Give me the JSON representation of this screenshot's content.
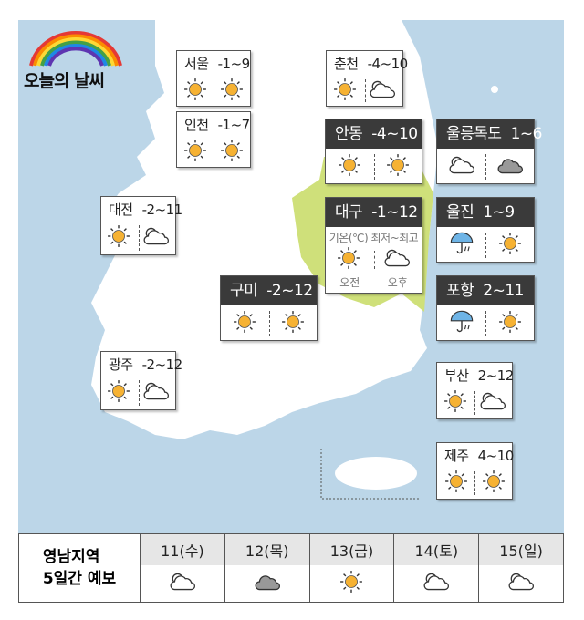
{
  "header": {
    "title": "오늘의 날씨"
  },
  "colors": {
    "sea": "#bcd6e8",
    "land": "#ffffff",
    "highlight_region": "#cfe07a",
    "card_header": "#3a3a3a",
    "sun": "#f6b233",
    "rain": "#6eb4e6"
  },
  "cities": [
    {
      "name": "서울",
      "temp": "-1~9",
      "am": "sun",
      "pm": "sun",
      "style": "plain"
    },
    {
      "name": "인천",
      "temp": "-1~7",
      "am": "sun",
      "pm": "sun",
      "style": "plain"
    },
    {
      "name": "춘천",
      "temp": "-4~10",
      "am": "sun",
      "pm": "cloud",
      "style": "plain"
    },
    {
      "name": "대전",
      "temp": "-2~11",
      "am": "sun",
      "pm": "cloud",
      "style": "plain"
    },
    {
      "name": "광주",
      "temp": "-2~12",
      "am": "sun",
      "pm": "cloud",
      "style": "plain"
    },
    {
      "name": "부산",
      "temp": "2~12",
      "am": "sun",
      "pm": "cloud",
      "style": "plain"
    },
    {
      "name": "제주",
      "temp": "4~10",
      "am": "sun",
      "pm": "sun",
      "style": "plain"
    },
    {
      "name": "안동",
      "temp": "-4~10",
      "am": "sun",
      "pm": "sun",
      "style": "dark"
    },
    {
      "name": "울릉독도",
      "temp": "1~6",
      "am": "cloud",
      "pm": "cloud-gray",
      "style": "dark"
    },
    {
      "name": "대구",
      "temp": "-1~12",
      "am": "sun",
      "pm": "cloud",
      "style": "dark",
      "legend": "기온(℃) 최저~최고",
      "am_label": "오전",
      "pm_label": "오후"
    },
    {
      "name": "울진",
      "temp": "1~9",
      "am": "umbrella-rain",
      "pm": "sun",
      "style": "dark"
    },
    {
      "name": "포항",
      "temp": "2~11",
      "am": "umbrella-rain",
      "pm": "sun",
      "style": "dark"
    },
    {
      "name": "구미",
      "temp": "-2~12",
      "am": "sun",
      "pm": "sun",
      "style": "dark"
    }
  ],
  "forecast": {
    "label_line1": "영남지역",
    "label_line2": "5일간 예보",
    "days": [
      {
        "day": "11(수)",
        "icon": "cloud"
      },
      {
        "day": "12(목)",
        "icon": "cloud-gray"
      },
      {
        "day": "13(금)",
        "icon": "sun"
      },
      {
        "day": "14(토)",
        "icon": "cloud"
      },
      {
        "day": "15(일)",
        "icon": "cloud"
      }
    ]
  }
}
